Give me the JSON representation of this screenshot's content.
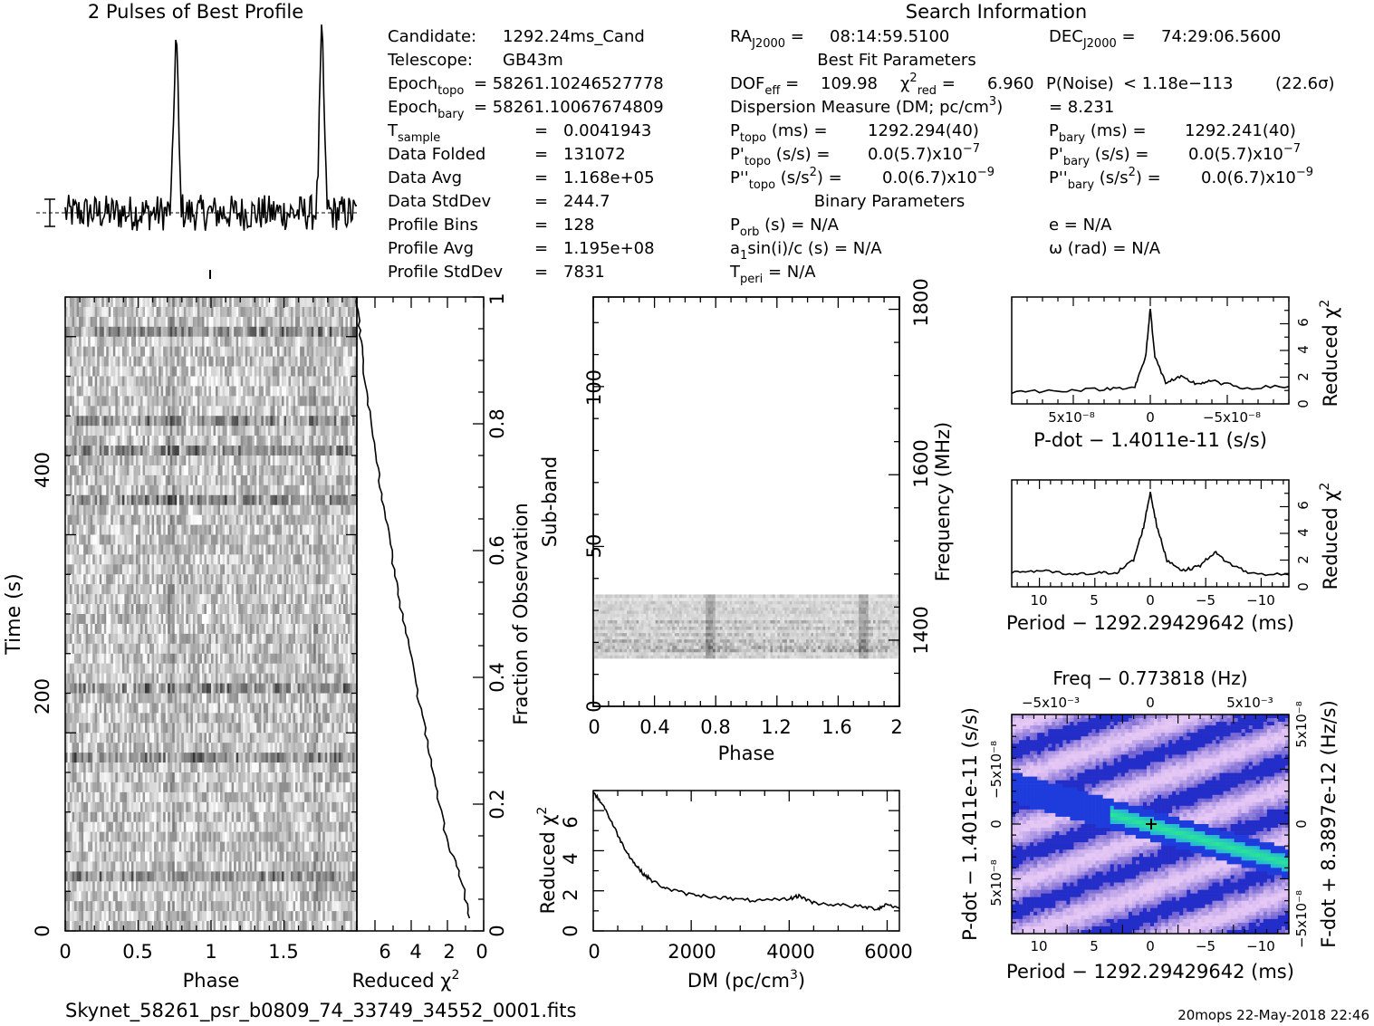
{
  "header": {
    "profile_title": "2 Pulses of Best Profile",
    "search_title": "Search Information",
    "best_fit_title": "Best Fit Parameters",
    "binary_title": "Binary Parameters"
  },
  "info_left": [
    {
      "label": "Candidate:",
      "value": "1292.24ms_Cand"
    },
    {
      "label": "Telescope:",
      "value": "GB43m"
    },
    {
      "label": "Epoch_topo",
      "value": "= 58261.10246527778"
    },
    {
      "label": "Epoch_bary",
      "value": "= 58261.10067674809"
    },
    {
      "label": "T_sample",
      "value": "0.0041943"
    },
    {
      "label": "Data Folded",
      "value": "131072"
    },
    {
      "label": "Data Avg",
      "value": "1.168e+05"
    },
    {
      "label": "Data StdDev",
      "value": "244.7"
    },
    {
      "label": "Profile Bins",
      "value": "128"
    },
    {
      "label": "Profile Avg",
      "value": "1.195e+08"
    },
    {
      "label": "Profile StdDev",
      "value": "7831"
    }
  ],
  "search_info": {
    "ra": "08:14:59.5100",
    "dec": "74:29:06.5600",
    "dof_eff": "109.98",
    "chi2_red": "6.960",
    "p_noise": "< 1.18e−113",
    "sigma": "(22.6σ)",
    "dm_label": "Dispersion Measure (DM; pc/cm",
    "dm_value": "= 8.231",
    "p_topo": "1292.294(40)",
    "p_bary": "1292.241(40)",
    "pd_topo": "0.0(5.7)x10",
    "pd_bary": "0.0(5.7)x10",
    "pdd_topo": "0.0(6.7)x10",
    "pdd_bary": "0.0(6.7)x10",
    "p_orb": "N/A",
    "e": "N/A",
    "a1sini": "N/A",
    "omega": "N/A",
    "t_peri": "N/A"
  },
  "footer": {
    "filename": "Skynet_58261_psr_b0809_74_33749_34552_0001.fits",
    "stamp": "20mops 22-May-2018 22:46"
  },
  "chart_data": [
    {
      "type": "line",
      "title": "2 Pulses of Best Profile",
      "xlabel": "Phase",
      "ylabel": "",
      "xlim": [
        0,
        2
      ],
      "peaks_at_phase": [
        0.76,
        1.76
      ],
      "baseline_ticks": true
    },
    {
      "type": "heatmap",
      "xlabel": "Phase",
      "ylabel": "Time (s)",
      "xlim": [
        0,
        2
      ],
      "ylim": [
        0,
        640
      ],
      "xticks": [
        "0",
        "0.5",
        "1",
        "1.5"
      ],
      "yticks": [
        "0",
        "200",
        "400"
      ]
    },
    {
      "type": "line",
      "xlabel": "Reduced χ²",
      "ylabel": "Fraction of Observation",
      "xlim": [
        7,
        0
      ],
      "ylim": [
        0,
        1
      ],
      "xticks": [
        "6",
        "4",
        "2",
        "0"
      ],
      "yticks": [
        "0",
        "0.2",
        "0.4",
        "0.6",
        "0.8",
        "1"
      ],
      "points": [
        [
          0.8,
          0.02
        ],
        [
          1.2,
          0.08
        ],
        [
          2.0,
          0.14
        ],
        [
          2.6,
          0.22
        ],
        [
          3.1,
          0.3
        ],
        [
          3.7,
          0.38
        ],
        [
          4.2,
          0.46
        ],
        [
          4.8,
          0.54
        ],
        [
          5.2,
          0.62
        ],
        [
          5.7,
          0.7
        ],
        [
          6.1,
          0.78
        ],
        [
          6.5,
          0.86
        ],
        [
          6.8,
          0.94
        ],
        [
          7.0,
          1.0
        ]
      ]
    },
    {
      "type": "heatmap",
      "xlabel": "Phase",
      "ylabel": "Sub-band",
      "y2label": "Frequency (MHz)",
      "xlim": [
        0,
        2
      ],
      "ylim": [
        0,
        128
      ],
      "xticks": [
        "0",
        "0.4",
        "0.8",
        "1.2",
        "1.6",
        "2"
      ],
      "yticks": [
        "0",
        "50",
        "100"
      ],
      "y2ticks": [
        "1400",
        "1600",
        "1800"
      ],
      "band_rows": [
        15,
        35
      ]
    },
    {
      "type": "line",
      "xlabel": "DM (pc/cm³)",
      "ylabel": "Reduced χ²",
      "xlim": [
        0,
        6250
      ],
      "ylim": [
        0,
        7
      ],
      "xticks": [
        "0",
        "2000",
        "4000",
        "6000"
      ],
      "yticks": [
        "0",
        "2",
        "4",
        "6"
      ],
      "points": [
        [
          0,
          6.9
        ],
        [
          200,
          6.3
        ],
        [
          400,
          5.3
        ],
        [
          600,
          4.3
        ],
        [
          800,
          3.5
        ],
        [
          1000,
          2.9
        ],
        [
          1200,
          2.5
        ],
        [
          1500,
          2.1
        ],
        [
          2000,
          1.8
        ],
        [
          2500,
          1.7
        ],
        [
          3000,
          1.55
        ],
        [
          3500,
          1.5
        ],
        [
          4000,
          1.6
        ],
        [
          4200,
          1.75
        ],
        [
          4500,
          1.4
        ],
        [
          5000,
          1.3
        ],
        [
          5500,
          1.2
        ],
        [
          5800,
          1.1
        ],
        [
          6000,
          1.35
        ],
        [
          6250,
          1.1
        ]
      ]
    },
    {
      "type": "line",
      "xlabel": "P-dot − 1.4011e-11 (s/s)",
      "ylabel": "Reduced χ²",
      "xlim": [
        9e-08,
        -9e-08
      ],
      "ylim": [
        0,
        8
      ],
      "xticks": [
        "5x10⁻⁸",
        "0",
        "−5x10⁻⁸"
      ],
      "yticks": [
        "0",
        "2",
        "4",
        "6"
      ],
      "points": [
        [
          9e-08,
          0.9
        ],
        [
          6e-08,
          1.0
        ],
        [
          3e-08,
          1.1
        ],
        [
          1e-08,
          1.3
        ],
        [
          3e-09,
          3.5
        ],
        [
          0,
          7.2
        ],
        [
          -3e-09,
          3.5
        ],
        [
          -1e-08,
          1.6
        ],
        [
          -2e-08,
          2.0
        ],
        [
          -3e-08,
          1.5
        ],
        [
          -4e-08,
          1.7
        ],
        [
          -6e-08,
          1.2
        ],
        [
          -9e-08,
          1.3
        ]
      ]
    },
    {
      "type": "line",
      "xlabel": "Period − 1292.29429642 (ms)",
      "ylabel": "Reduced χ²",
      "xlim": [
        12.5,
        -12.5
      ],
      "ylim": [
        0,
        8
      ],
      "xticks": [
        "10",
        "5",
        "0",
        "−5",
        "−10"
      ],
      "yticks": [
        "0",
        "2",
        "4",
        "6"
      ],
      "points": [
        [
          12.5,
          1.1
        ],
        [
          10,
          1.2
        ],
        [
          7,
          0.9
        ],
        [
          5,
          1.0
        ],
        [
          3,
          1.1
        ],
        [
          1.5,
          2.0
        ],
        [
          0.6,
          4.5
        ],
        [
          0,
          7.1
        ],
        [
          -0.6,
          4.5
        ],
        [
          -1.5,
          2.0
        ],
        [
          -3,
          1.2
        ],
        [
          -4.5,
          1.6
        ],
        [
          -5.8,
          2.6
        ],
        [
          -7,
          1.8
        ],
        [
          -9,
          1.0
        ],
        [
          -12.5,
          0.9
        ]
      ]
    },
    {
      "type": "heatmap",
      "title": "Freq − 0.773818 (Hz)",
      "xlabel": "Period − 1292.29429642 (ms)",
      "ylabel": "P-dot − 1.4011e-11 (s/s)",
      "y2label": "F-dot + 8.3897e-12 (Hz/s)",
      "xlim": [
        12.5,
        -12.5
      ],
      "xticks": [
        "10",
        "5",
        "0",
        "−5",
        "−10"
      ],
      "x2ticks": [
        "−5x10⁻³",
        "0",
        "5x10⁻³"
      ],
      "yticks": [
        "−5x10⁻⁸",
        "0",
        "5x10⁻⁸"
      ],
      "y2ticks": [
        "5x10⁻⁸",
        "0",
        "−5x10⁻⁸"
      ]
    }
  ]
}
